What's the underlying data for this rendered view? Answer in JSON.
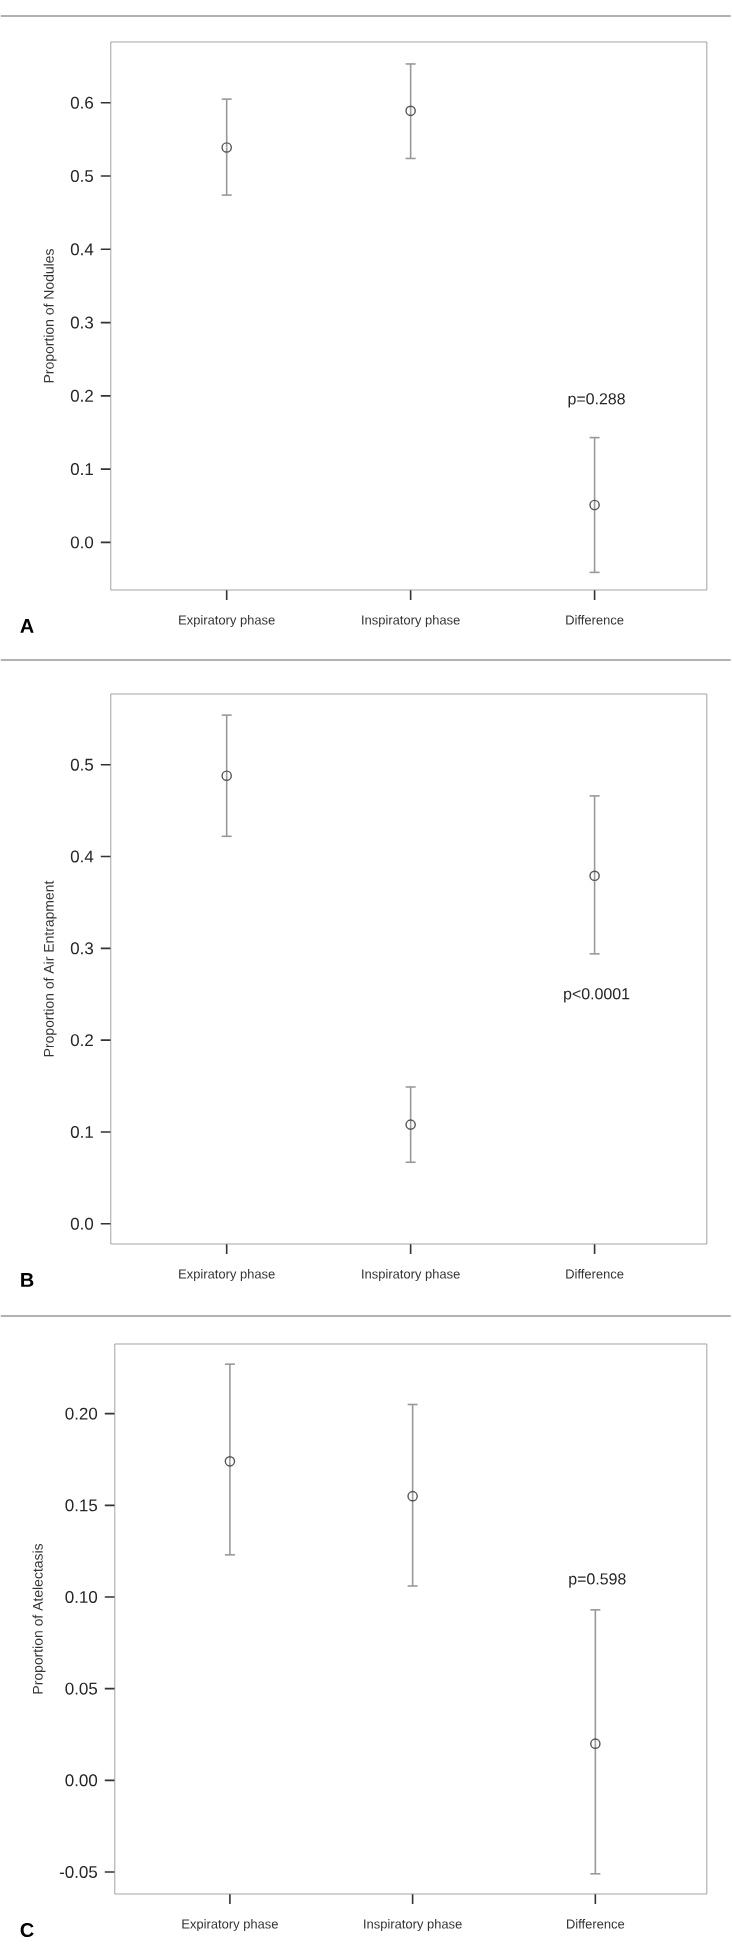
{
  "chart_data": [
    {
      "type": "scatter",
      "ylabel": "Proportion of Nodules",
      "categories": [
        "Expiratory phase",
        "Inspiratory phase",
        "Difference"
      ],
      "marker": "circle",
      "series": [
        {
          "color": "#555555",
          "values": [
            0.539,
            0.589,
            0.051
          ],
          "errors": [
            [
              0.474,
              0.605
            ],
            [
              0.524,
              0.653
            ],
            [
              -0.041,
              0.143
            ]
          ]
        }
      ],
      "ylim": [
        -0.065,
        0.683
      ],
      "yticks": [
        {
          "value": 0,
          "label": "0.0"
        },
        {
          "value": 0.1,
          "label": "0.1"
        },
        {
          "value": 0.2,
          "label": "0.2"
        },
        {
          "value": 0.3,
          "label": "0.3"
        },
        {
          "value": 0.4,
          "label": "0.4"
        },
        {
          "value": 0.5,
          "label": "0.5"
        },
        {
          "value": 0.6,
          "label": "0.6"
        }
      ],
      "annotations": [
        "p=0.288",
        "A"
      ]
    },
    {
      "type": "scatter",
      "ylabel": "Proportion of Air Entrapment",
      "categories": [
        "Expiratory phase",
        "Inspiratory phase",
        "Difference"
      ],
      "marker": "circle",
      "series": [
        {
          "color": "#555555",
          "values": [
            0.488,
            0.108,
            0.379
          ],
          "errors": [
            [
              0.422,
              0.554
            ],
            [
              0.067,
              0.149
            ],
            [
              0.294,
              0.466
            ]
          ]
        }
      ],
      "ylim": [
        -0.022,
        0.577
      ],
      "yticks": [
        {
          "value": 0,
          "label": "0.0"
        },
        {
          "value": 0.1,
          "label": "0.1"
        },
        {
          "value": 0.2,
          "label": "0.2"
        },
        {
          "value": 0.3,
          "label": "0.3"
        },
        {
          "value": 0.4,
          "label": "0.4"
        },
        {
          "value": 0.5,
          "label": "0.5"
        }
      ],
      "annotations": [
        "p<0.0001",
        "B"
      ]
    },
    {
      "type": "scatter",
      "ylabel": "Proportion of Atelectasis",
      "categories": [
        "Expiratory phase",
        "Inspiratory phase",
        "Difference"
      ],
      "marker": "circle",
      "series": [
        {
          "color": "#555555",
          "values": [
            0.174,
            0.155,
            0.02
          ],
          "errors": [
            [
              0.123,
              0.227
            ],
            [
              0.106,
              0.205
            ],
            [
              -0.051,
              0.093
            ]
          ]
        }
      ],
      "ylim": [
        -0.062,
        0.238
      ],
      "yticks": [
        {
          "value": -0.05,
          "label": "-0.05"
        },
        {
          "value": 0,
          "label": "0.00"
        },
        {
          "value": 0.05,
          "label": "0.05"
        },
        {
          "value": 0.1,
          "label": "0.10"
        },
        {
          "value": 0.15,
          "label": "0.15"
        },
        {
          "value": 0.2,
          "label": "0.20"
        }
      ],
      "annotations": [
        "p=0.598",
        "C"
      ]
    }
  ]
}
